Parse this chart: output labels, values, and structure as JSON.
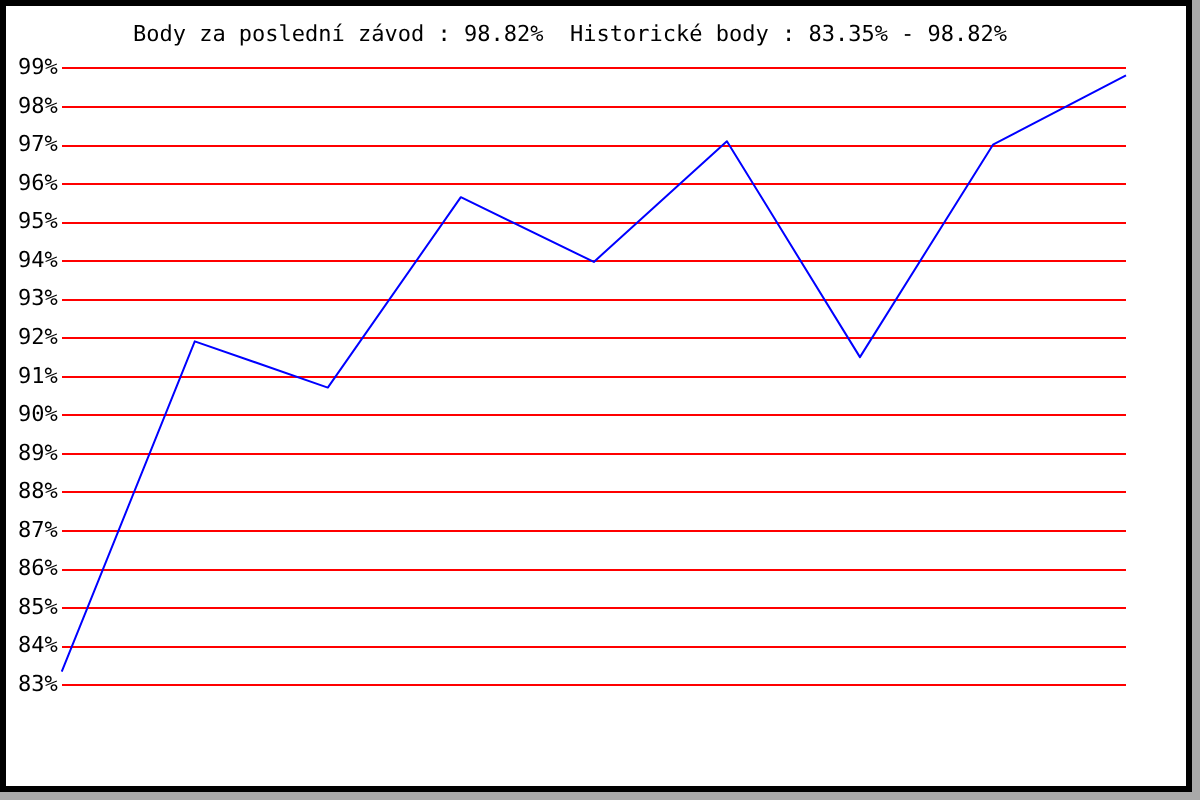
{
  "chart_data": {
    "type": "line",
    "title": "Body za poslední závod : 98.82%  Historické body : 83.35% - 98.82%",
    "categories": [
      null,
      null,
      null,
      null,
      null,
      null,
      null,
      null,
      null
    ],
    "series": [
      {
        "color": "#0000ff",
        "values": [
          83.35,
          91.92,
          90.72,
          95.66,
          93.98,
          97.11,
          91.51,
          97.02,
          98.82
        ]
      }
    ],
    "ylim": [
      83,
      99
    ],
    "yticks": [
      {
        "value": 83,
        "label": "83%"
      },
      {
        "value": 84,
        "label": "84%"
      },
      {
        "value": 85,
        "label": "85%"
      },
      {
        "value": 86,
        "label": "86%"
      },
      {
        "value": 87,
        "label": "87%"
      },
      {
        "value": 88,
        "label": "88%"
      },
      {
        "value": 89,
        "label": "89%"
      },
      {
        "value": 90,
        "label": "90%"
      },
      {
        "value": 91,
        "label": "91%"
      },
      {
        "value": 92,
        "label": "92%"
      },
      {
        "value": 93,
        "label": "93%"
      },
      {
        "value": 94,
        "label": "94%"
      },
      {
        "value": 95,
        "label": "95%"
      },
      {
        "value": 96,
        "label": "96%"
      },
      {
        "value": 97,
        "label": "97%"
      },
      {
        "value": 98,
        "label": "98%"
      },
      {
        "value": 99,
        "label": "99%"
      }
    ],
    "grid": "y",
    "marker": "none",
    "line_style": "solid",
    "legend": false
  }
}
